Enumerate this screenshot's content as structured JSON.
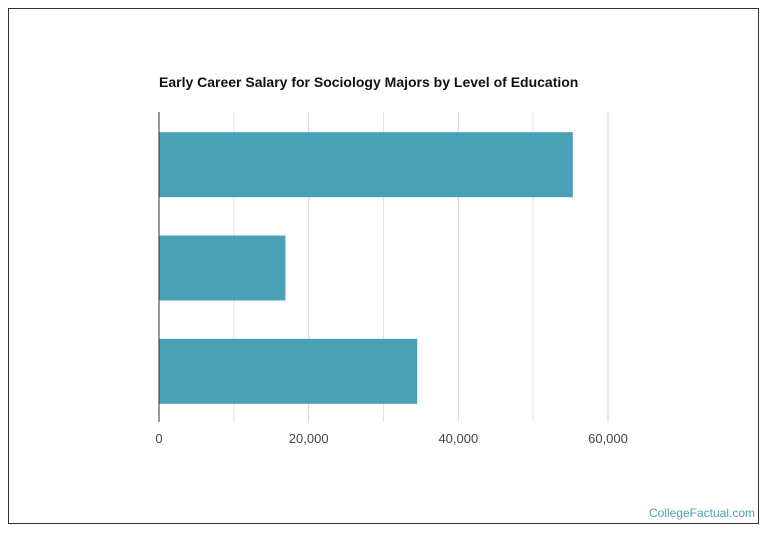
{
  "chart_data": {
    "type": "bar",
    "orientation": "horizontal",
    "title": "Early Career Salary for Sociology Majors by Level of Education",
    "categories": [
      "",
      "",
      ""
    ],
    "values": [
      55300,
      16900,
      34500
    ],
    "xlim": [
      0,
      60000
    ],
    "x_ticks": [
      0,
      20000,
      40000,
      60000
    ],
    "x_tick_labels": [
      "0",
      "20,000",
      "40,000",
      "60,000"
    ],
    "xlabel": "",
    "ylabel": "",
    "grid": true,
    "bar_color": "#4aa0b5",
    "grid_color": "#e4e4e4"
  },
  "footer": {
    "watermark": "CollegeFactual.com"
  }
}
